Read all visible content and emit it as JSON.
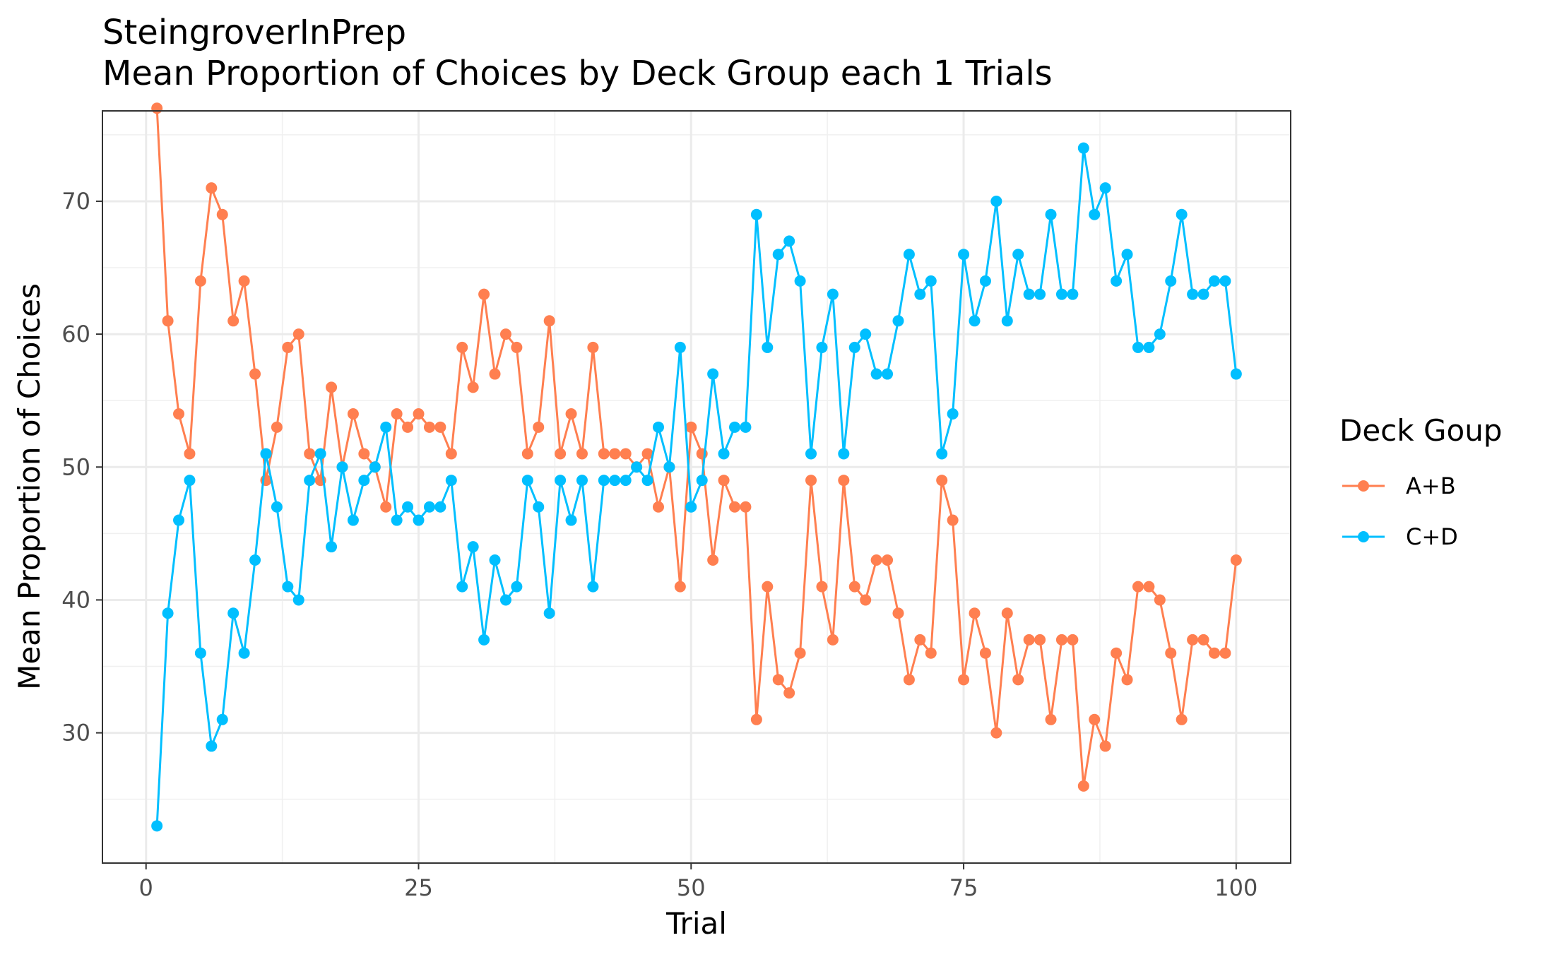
{
  "chart_data": {
    "type": "line",
    "title": "SteingroverInPrep",
    "subtitle": "Mean Proportion of Choices by Deck Group each 1 Trials",
    "xlabel": "Trial",
    "ylabel": "Mean Proportion of Choices",
    "xlim": [
      -4,
      105
    ],
    "ylim": [
      20.2,
      76.8
    ],
    "xticks": [
      0,
      25,
      50,
      75,
      100
    ],
    "yticks": [
      30,
      40,
      50,
      60,
      70
    ],
    "grid": true,
    "legend": {
      "title": "Deck Goup",
      "placement": "right"
    },
    "x": [
      1,
      2,
      3,
      4,
      5,
      6,
      7,
      8,
      9,
      10,
      11,
      12,
      13,
      14,
      15,
      16,
      17,
      18,
      19,
      20,
      21,
      22,
      23,
      24,
      25,
      26,
      27,
      28,
      29,
      30,
      31,
      32,
      33,
      34,
      35,
      36,
      37,
      38,
      39,
      40,
      41,
      42,
      43,
      44,
      45,
      46,
      47,
      48,
      49,
      50,
      51,
      52,
      53,
      54,
      55,
      56,
      57,
      58,
      59,
      60,
      61,
      62,
      63,
      64,
      65,
      66,
      67,
      68,
      69,
      70,
      71,
      72,
      73,
      74,
      75,
      76,
      77,
      78,
      79,
      80,
      81,
      82,
      83,
      84,
      85,
      86,
      87,
      88,
      89,
      90,
      91,
      92,
      93,
      94,
      95,
      96,
      97,
      98,
      99,
      100
    ],
    "series": [
      {
        "name": "A+B",
        "color": "#FF7F50",
        "values": [
          77,
          61,
          54,
          51,
          64,
          71,
          69,
          61,
          64,
          57,
          49,
          53,
          59,
          60,
          51,
          49,
          56,
          50,
          54,
          51,
          50,
          47,
          54,
          53,
          54,
          53,
          53,
          51,
          59,
          56,
          63,
          57,
          60,
          59,
          51,
          53,
          61,
          51,
          54,
          51,
          59,
          51,
          51,
          51,
          50,
          51,
          47,
          50,
          41,
          53,
          51,
          43,
          49,
          47,
          47,
          31,
          41,
          34,
          33,
          36,
          49,
          41,
          37,
          49,
          41,
          40,
          43,
          43,
          39,
          34,
          37,
          36,
          49,
          46,
          34,
          39,
          36,
          30,
          39,
          34,
          37,
          37,
          31,
          37,
          37,
          26,
          31,
          29,
          36,
          34,
          41,
          41,
          40,
          36,
          31,
          37,
          37,
          36,
          36,
          43
        ]
      },
      {
        "name": "C+D",
        "color": "#00BFFF",
        "values": [
          23,
          39,
          46,
          49,
          36,
          29,
          31,
          39,
          36,
          43,
          51,
          47,
          41,
          40,
          49,
          51,
          44,
          50,
          46,
          49,
          50,
          53,
          46,
          47,
          46,
          47,
          47,
          49,
          41,
          44,
          37,
          43,
          40,
          41,
          49,
          47,
          39,
          49,
          46,
          49,
          41,
          49,
          49,
          49,
          50,
          49,
          53,
          50,
          59,
          47,
          49,
          57,
          51,
          53,
          53,
          69,
          59,
          66,
          67,
          64,
          51,
          59,
          63,
          51,
          59,
          60,
          57,
          57,
          61,
          66,
          63,
          64,
          51,
          54,
          66,
          61,
          64,
          70,
          61,
          66,
          63,
          63,
          69,
          63,
          63,
          74,
          69,
          71,
          64,
          66,
          59,
          59,
          60,
          64,
          69,
          63,
          63,
          64,
          64,
          57
        ]
      }
    ]
  }
}
